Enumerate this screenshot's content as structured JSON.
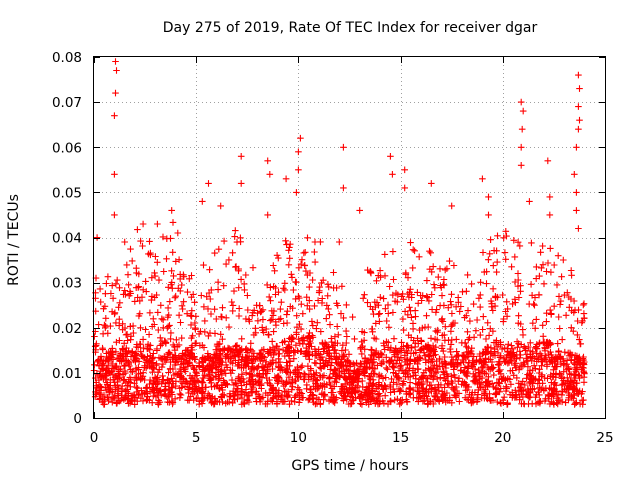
{
  "chart_data": {
    "type": "scatter",
    "title": "Day 275 of 2019, Rate Of TEC Index for receiver dgar",
    "xlabel": "GPS time / hours",
    "ylabel": "ROTI / TECUs",
    "xlim": [
      0,
      25
    ],
    "ylim": [
      0,
      0.08
    ],
    "xticks": [
      0,
      5,
      10,
      15,
      20,
      25
    ],
    "xtick_labels": [
      "0",
      "5",
      "10",
      "15",
      "20",
      "25"
    ],
    "yticks": [
      0,
      0.01,
      0.02,
      0.03,
      0.04,
      0.05,
      0.06,
      0.07,
      0.08
    ],
    "ytick_labels": [
      "0",
      "0.01",
      "0.02",
      "0.03",
      "0.04",
      "0.05",
      "0.06",
      "0.07",
      "0.08"
    ],
    "grid": true,
    "marker": "+",
    "color": "#ff0000",
    "series": [
      {
        "name": "ROTI",
        "envelope": [
          {
            "x": 0.0,
            "typical": 0.01,
            "upper": 0.022
          },
          {
            "x": 1.0,
            "typical": 0.011,
            "upper": 0.028
          },
          {
            "x": 2.0,
            "typical": 0.012,
            "upper": 0.034
          },
          {
            "x": 3.0,
            "typical": 0.013,
            "upper": 0.036
          },
          {
            "x": 4.0,
            "typical": 0.013,
            "upper": 0.036
          },
          {
            "x": 5.0,
            "typical": 0.01,
            "upper": 0.025
          },
          {
            "x": 6.0,
            "typical": 0.011,
            "upper": 0.03
          },
          {
            "x": 7.0,
            "typical": 0.012,
            "upper": 0.034
          },
          {
            "x": 8.0,
            "typical": 0.011,
            "upper": 0.026
          },
          {
            "x": 9.0,
            "typical": 0.012,
            "upper": 0.03
          },
          {
            "x": 10.0,
            "typical": 0.014,
            "upper": 0.034
          },
          {
            "x": 11.0,
            "typical": 0.013,
            "upper": 0.032
          },
          {
            "x": 12.0,
            "typical": 0.011,
            "upper": 0.03
          },
          {
            "x": 12.8,
            "typical": 0.008,
            "upper": 0.012
          },
          {
            "x": 13.5,
            "typical": 0.011,
            "upper": 0.028
          },
          {
            "x": 15.0,
            "typical": 0.012,
            "upper": 0.03
          },
          {
            "x": 16.0,
            "typical": 0.012,
            "upper": 0.032
          },
          {
            "x": 17.0,
            "typical": 0.012,
            "upper": 0.03
          },
          {
            "x": 18.0,
            "typical": 0.011,
            "upper": 0.026
          },
          {
            "x": 19.0,
            "typical": 0.012,
            "upper": 0.03
          },
          {
            "x": 20.0,
            "typical": 0.013,
            "upper": 0.034
          },
          {
            "x": 21.0,
            "typical": 0.012,
            "upper": 0.034
          },
          {
            "x": 22.0,
            "typical": 0.013,
            "upper": 0.034
          },
          {
            "x": 23.0,
            "typical": 0.011,
            "upper": 0.028
          },
          {
            "x": 24.0,
            "typical": 0.01,
            "upper": 0.025
          }
        ],
        "peaks": [
          {
            "x": 1.05,
            "y": 0.079
          },
          {
            "x": 1.1,
            "y": 0.077
          },
          {
            "x": 1.05,
            "y": 0.072
          },
          {
            "x": 1.0,
            "y": 0.067
          },
          {
            "x": 1.0,
            "y": 0.054
          },
          {
            "x": 1.0,
            "y": 0.045
          },
          {
            "x": 0.15,
            "y": 0.04
          },
          {
            "x": 2.4,
            "y": 0.043
          },
          {
            "x": 3.1,
            "y": 0.043
          },
          {
            "x": 3.8,
            "y": 0.046
          },
          {
            "x": 4.1,
            "y": 0.041
          },
          {
            "x": 5.6,
            "y": 0.052
          },
          {
            "x": 5.3,
            "y": 0.048
          },
          {
            "x": 6.2,
            "y": 0.047
          },
          {
            "x": 7.2,
            "y": 0.058
          },
          {
            "x": 7.2,
            "y": 0.052
          },
          {
            "x": 8.5,
            "y": 0.057
          },
          {
            "x": 8.6,
            "y": 0.054
          },
          {
            "x": 8.5,
            "y": 0.045
          },
          {
            "x": 9.4,
            "y": 0.053
          },
          {
            "x": 10.1,
            "y": 0.062
          },
          {
            "x": 10.0,
            "y": 0.059
          },
          {
            "x": 10.0,
            "y": 0.055
          },
          {
            "x": 9.9,
            "y": 0.05
          },
          {
            "x": 12.2,
            "y": 0.06
          },
          {
            "x": 12.2,
            "y": 0.051
          },
          {
            "x": 13.0,
            "y": 0.046
          },
          {
            "x": 14.5,
            "y": 0.058
          },
          {
            "x": 14.6,
            "y": 0.054
          },
          {
            "x": 15.2,
            "y": 0.055
          },
          {
            "x": 15.2,
            "y": 0.051
          },
          {
            "x": 16.5,
            "y": 0.052
          },
          {
            "x": 17.5,
            "y": 0.047
          },
          {
            "x": 19.0,
            "y": 0.053
          },
          {
            "x": 19.3,
            "y": 0.049
          },
          {
            "x": 19.3,
            "y": 0.045
          },
          {
            "x": 20.9,
            "y": 0.07
          },
          {
            "x": 21.0,
            "y": 0.068
          },
          {
            "x": 20.95,
            "y": 0.064
          },
          {
            "x": 20.9,
            "y": 0.06
          },
          {
            "x": 20.9,
            "y": 0.056
          },
          {
            "x": 21.3,
            "y": 0.048
          },
          {
            "x": 22.2,
            "y": 0.057
          },
          {
            "x": 22.3,
            "y": 0.049
          },
          {
            "x": 22.3,
            "y": 0.045
          },
          {
            "x": 23.7,
            "y": 0.076
          },
          {
            "x": 23.75,
            "y": 0.073
          },
          {
            "x": 23.7,
            "y": 0.069
          },
          {
            "x": 23.75,
            "y": 0.066
          },
          {
            "x": 23.7,
            "y": 0.064
          },
          {
            "x": 23.6,
            "y": 0.06
          },
          {
            "x": 23.5,
            "y": 0.054
          },
          {
            "x": 23.6,
            "y": 0.05
          },
          {
            "x": 23.6,
            "y": 0.046
          },
          {
            "x": 23.7,
            "y": 0.042
          },
          {
            "x": 0.1,
            "y": 0.031
          },
          {
            "x": 12.0,
            "y": 0.039
          }
        ]
      }
    ]
  }
}
